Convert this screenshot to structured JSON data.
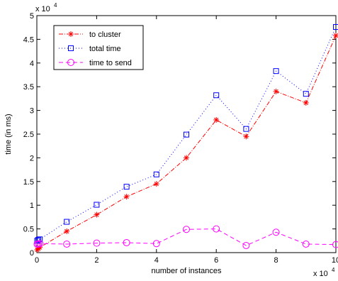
{
  "chart_data": {
    "type": "line",
    "title": "",
    "xlabel": "number of instances",
    "ylabel": "time (in ms)",
    "x_exponent_label": "x 10",
    "x_exponent": "4",
    "y_exponent_label": "x 10",
    "y_exponent": "4",
    "xlim": [
      0,
      100000
    ],
    "ylim": [
      0,
      50000
    ],
    "xticks": [
      0,
      20000,
      40000,
      60000,
      80000,
      100000
    ],
    "xtick_labels": [
      "0",
      "2",
      "4",
      "6",
      "8",
      "10"
    ],
    "yticks": [
      0,
      5000,
      10000,
      15000,
      20000,
      25000,
      30000,
      35000,
      40000,
      45000,
      50000
    ],
    "ytick_labels": [
      "0",
      "0.5",
      "1",
      "1.5",
      "2",
      "2.5",
      "3",
      "3.5",
      "4",
      "4.5",
      "5"
    ],
    "grid": false,
    "legend_position": "top-left",
    "x": [
      100,
      500,
      1000,
      10000,
      20000,
      30000,
      40000,
      50000,
      60000,
      70000,
      80000,
      90000,
      100000
    ],
    "series": [
      {
        "name": "to cluster",
        "color": "#ff0000",
        "line_style": "dash-dot",
        "marker": "asterisk",
        "values": [
          600,
          800,
          1100,
          4500,
          8000,
          11800,
          14500,
          20000,
          28000,
          24500,
          34000,
          31600,
          45800
        ]
      },
      {
        "name": "total time",
        "color": "#0000ff",
        "line_style": "dotted",
        "marker": "square",
        "values": [
          2500,
          2700,
          2800,
          6500,
          10100,
          13900,
          16500,
          24900,
          33200,
          26100,
          38300,
          33500,
          47600
        ]
      },
      {
        "name": "time to send",
        "color": "#ff00ff",
        "line_style": "dashed",
        "marker": "circle",
        "values": [
          1800,
          1800,
          1900,
          1800,
          2000,
          2100,
          1900,
          4900,
          5000,
          1500,
          4300,
          1800,
          1700
        ]
      }
    ]
  }
}
